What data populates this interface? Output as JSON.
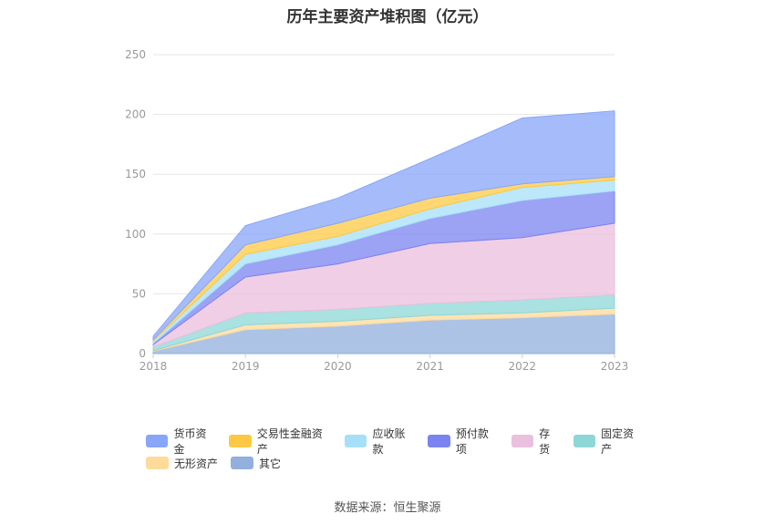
{
  "title": "历年主要资产堆积图（亿元）",
  "source": "数据来源：恒生聚源",
  "chart_data": {
    "type": "area",
    "stacked": true,
    "categories": [
      "2018",
      "2019",
      "2020",
      "2021",
      "2022",
      "2023"
    ],
    "ylim": [
      0,
      250
    ],
    "yticks": [
      "0",
      "50",
      "100",
      "150",
      "200",
      "250"
    ],
    "grid": true,
    "legend_position": "bottom",
    "series": [
      {
        "name": "其它",
        "color": "#92afdd",
        "values": [
          2,
          20,
          23,
          28,
          30,
          33
        ]
      },
      {
        "name": "无形资产",
        "color": "#fedb9b",
        "values": [
          0.5,
          4,
          4,
          4,
          4,
          5
        ]
      },
      {
        "name": "固定资产",
        "color": "#8ed7d7",
        "values": [
          3,
          10,
          10,
          10,
          11,
          11
        ]
      },
      {
        "name": "存货",
        "color": "#ebbfde",
        "values": [
          2,
          30,
          38,
          50,
          52,
          60
        ]
      },
      {
        "name": "预付款项",
        "color": "#7b83f0",
        "values": [
          1,
          11,
          16,
          21,
          31,
          27
        ]
      },
      {
        "name": "应收账款",
        "color": "#a6e0f8",
        "values": [
          2,
          8,
          7,
          8,
          11,
          9
        ]
      },
      {
        "name": "交易性金融资产",
        "color": "#fdc944",
        "values": [
          1,
          8,
          11,
          9,
          3,
          3
        ]
      },
      {
        "name": "货币资金",
        "color": "#88a6f8",
        "values": [
          3,
          16,
          21,
          33,
          55,
          55
        ]
      }
    ],
    "legend_order": [
      "货币资金",
      "交易性金融资产",
      "应收账款",
      "预付款项",
      "存货",
      "固定资产",
      "无形资产",
      "其它"
    ]
  }
}
